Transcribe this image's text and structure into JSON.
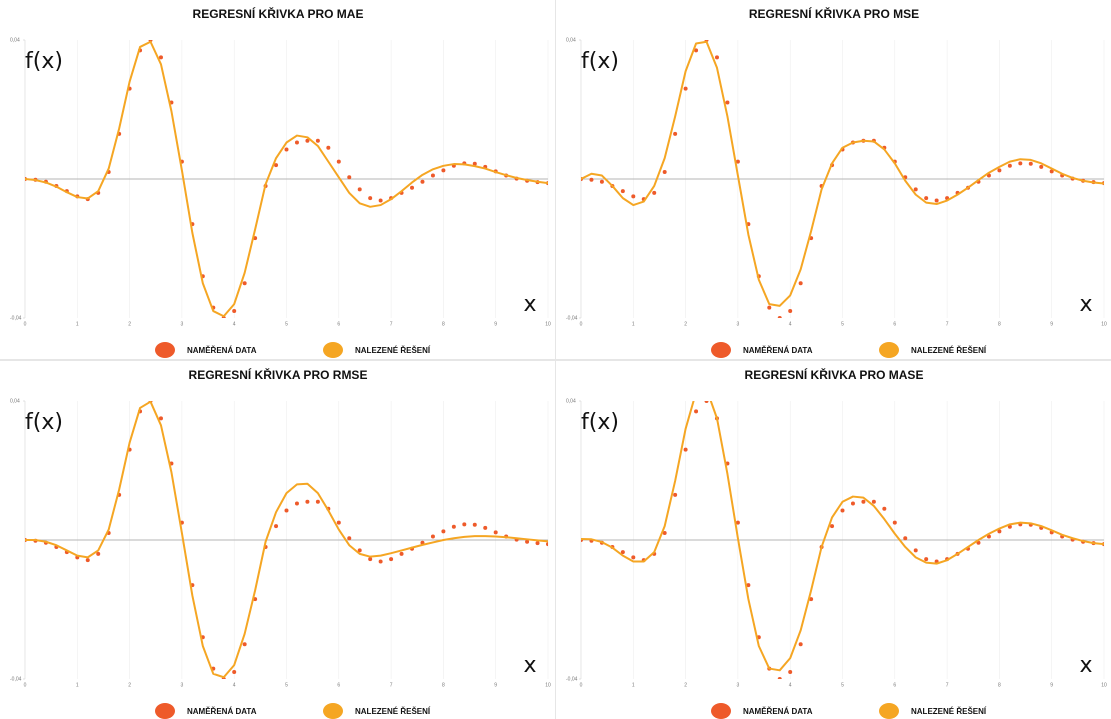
{
  "chart_data": [
    {
      "type": "line",
      "title": "REGRESNÍ KŘIVKA PRO MAE",
      "xlabel": "x",
      "ylabel": "f(x)",
      "xlim": [
        0,
        10
      ],
      "xticks": [
        0,
        1,
        2,
        3,
        4,
        5,
        6,
        7,
        8,
        9,
        10
      ],
      "ylim": [
        -0.04,
        0.04
      ],
      "yticks": [
        {
          "value": -0.04,
          "label": "-0,04"
        },
        {
          "value": 0.04,
          "label": "0,04"
        }
      ],
      "grid": true,
      "x": [
        0,
        0.2,
        0.4,
        0.6,
        0.8,
        1,
        1.2,
        1.4,
        1.6,
        1.8,
        2,
        2.2,
        2.4,
        2.6,
        2.8,
        3,
        3.2,
        3.4,
        3.6,
        3.8,
        4,
        4.2,
        4.4,
        4.6,
        4.8,
        5,
        5.2,
        5.4,
        5.6,
        5.8,
        6,
        6.2,
        6.4,
        6.6,
        6.8,
        7,
        7.2,
        7.4,
        7.6,
        7.8,
        8,
        8.2,
        8.4,
        8.6,
        8.8,
        9,
        9.2,
        9.4,
        9.6,
        9.8,
        10
      ],
      "series": [
        {
          "name": "NAMĚŘENÁ DATA",
          "color": "#ee5a2a",
          "mode": "markers",
          "values": [
            0,
            -0.0002,
            -0.0008,
            -0.002,
            -0.0035,
            -0.005,
            -0.0058,
            -0.004,
            0.002,
            0.013,
            0.026,
            0.037,
            0.04,
            0.035,
            0.022,
            0.005,
            -0.013,
            -0.028,
            -0.037,
            -0.04,
            -0.038,
            -0.03,
            -0.017,
            -0.002,
            0.004,
            0.0085,
            0.0105,
            0.011,
            0.011,
            0.009,
            0.005,
            0.0005,
            -0.003,
            -0.0055,
            -0.0062,
            -0.0055,
            -0.004,
            -0.0025,
            -0.0008,
            0.001,
            0.0025,
            0.0038,
            0.0045,
            0.0044,
            0.0035,
            0.0022,
            0.001,
            0.0001,
            -0.0005,
            -0.0009,
            -0.0012
          ]
        },
        {
          "name": "NALEZENÉ ŘEŠENÍ",
          "color": "#f5a623",
          "mode": "line",
          "values": [
            0,
            -0.0003,
            -0.001,
            -0.0022,
            -0.0038,
            -0.0052,
            -0.0056,
            -0.0035,
            0.003,
            0.0145,
            0.028,
            0.038,
            0.0395,
            0.033,
            0.0195,
            0.0025,
            -0.0155,
            -0.03,
            -0.038,
            -0.0395,
            -0.036,
            -0.027,
            -0.0145,
            -0.0015,
            0.006,
            0.0105,
            0.0125,
            0.012,
            0.0095,
            0.005,
            0.0005,
            -0.004,
            -0.007,
            -0.008,
            -0.0075,
            -0.0058,
            -0.0035,
            -0.001,
            0.0012,
            0.0028,
            0.0038,
            0.0043,
            0.0042,
            0.0037,
            0.003,
            0.002,
            0.0011,
            0.0003,
            -0.0003,
            -0.0008,
            -0.0012
          ]
        }
      ]
    },
    {
      "type": "line",
      "title": "REGRESNÍ KŘIVKA PRO MSE",
      "xlabel": "x",
      "ylabel": "f(x)",
      "xlim": [
        0,
        10
      ],
      "xticks": [
        0,
        1,
        2,
        3,
        4,
        5,
        6,
        7,
        8,
        9,
        10
      ],
      "ylim": [
        -0.04,
        0.04
      ],
      "yticks": [
        {
          "value": -0.04,
          "label": "-0,04"
        },
        {
          "value": 0.04,
          "label": "0,04"
        }
      ],
      "grid": true,
      "x": [
        0,
        0.2,
        0.4,
        0.6,
        0.8,
        1,
        1.2,
        1.4,
        1.6,
        1.8,
        2,
        2.2,
        2.4,
        2.6,
        2.8,
        3,
        3.2,
        3.4,
        3.6,
        3.8,
        4,
        4.2,
        4.4,
        4.6,
        4.8,
        5,
        5.2,
        5.4,
        5.6,
        5.8,
        6,
        6.2,
        6.4,
        6.6,
        6.8,
        7,
        7.2,
        7.4,
        7.6,
        7.8,
        8,
        8.2,
        8.4,
        8.6,
        8.8,
        9,
        9.2,
        9.4,
        9.6,
        9.8,
        10
      ],
      "series": [
        {
          "name": "NAMĚŘENÁ DATA",
          "color": "#ee5a2a",
          "mode": "markers",
          "values": [
            0,
            -0.0002,
            -0.0008,
            -0.002,
            -0.0035,
            -0.005,
            -0.0058,
            -0.004,
            0.002,
            0.013,
            0.026,
            0.037,
            0.04,
            0.035,
            0.022,
            0.005,
            -0.013,
            -0.028,
            -0.037,
            -0.04,
            -0.038,
            -0.03,
            -0.017,
            -0.002,
            0.004,
            0.0085,
            0.0105,
            0.011,
            0.011,
            0.009,
            0.005,
            0.0005,
            -0.003,
            -0.0055,
            -0.0062,
            -0.0055,
            -0.004,
            -0.0025,
            -0.0008,
            0.001,
            0.0025,
            0.0038,
            0.0045,
            0.0044,
            0.0035,
            0.0022,
            0.001,
            0.0001,
            -0.0005,
            -0.0009,
            -0.0012
          ]
        },
        {
          "name": "NALEZENÉ ŘEŠENÍ",
          "color": "#f5a623",
          "mode": "line",
          "values": [
            0,
            0.0015,
            0.001,
            -0.002,
            -0.0055,
            -0.0075,
            -0.0065,
            -0.002,
            0.006,
            0.018,
            0.031,
            0.039,
            0.0395,
            0.032,
            0.018,
            0.001,
            -0.016,
            -0.029,
            -0.036,
            -0.0365,
            -0.0335,
            -0.026,
            -0.015,
            -0.003,
            0.0045,
            0.009,
            0.0105,
            0.011,
            0.0108,
            0.0085,
            0.0045,
            -0.0005,
            -0.0045,
            -0.0068,
            -0.0072,
            -0.0062,
            -0.0045,
            -0.0025,
            -0.0003,
            0.0018,
            0.0035,
            0.005,
            0.0057,
            0.0055,
            0.0045,
            0.003,
            0.0015,
            0.0003,
            -0.0005,
            -0.001,
            -0.0013
          ]
        }
      ]
    },
    {
      "type": "line",
      "title": "REGRESNÍ KŘIVKA PRO RMSE",
      "xlabel": "x",
      "ylabel": "f(x)",
      "xlim": [
        0,
        10
      ],
      "xticks": [
        0,
        1,
        2,
        3,
        4,
        5,
        6,
        7,
        8,
        9,
        10
      ],
      "ylim": [
        -0.04,
        0.04
      ],
      "yticks": [
        {
          "value": -0.04,
          "label": "-0,04"
        },
        {
          "value": 0.04,
          "label": "0,04"
        }
      ],
      "grid": true,
      "x": [
        0,
        0.2,
        0.4,
        0.6,
        0.8,
        1,
        1.2,
        1.4,
        1.6,
        1.8,
        2,
        2.2,
        2.4,
        2.6,
        2.8,
        3,
        3.2,
        3.4,
        3.6,
        3.8,
        4,
        4.2,
        4.4,
        4.6,
        4.8,
        5,
        5.2,
        5.4,
        5.6,
        5.8,
        6,
        6.2,
        6.4,
        6.6,
        6.8,
        7,
        7.2,
        7.4,
        7.6,
        7.8,
        8,
        8.2,
        8.4,
        8.6,
        8.8,
        9,
        9.2,
        9.4,
        9.6,
        9.8,
        10
      ],
      "series": [
        {
          "name": "NAMĚŘENÁ DATA",
          "color": "#ee5a2a",
          "mode": "markers",
          "values": [
            0,
            -0.0002,
            -0.0008,
            -0.002,
            -0.0035,
            -0.005,
            -0.0058,
            -0.004,
            0.002,
            0.013,
            0.026,
            0.037,
            0.04,
            0.035,
            0.022,
            0.005,
            -0.013,
            -0.028,
            -0.037,
            -0.04,
            -0.038,
            -0.03,
            -0.017,
            -0.002,
            0.004,
            0.0085,
            0.0105,
            0.011,
            0.011,
            0.009,
            0.005,
            0.0005,
            -0.003,
            -0.0055,
            -0.0062,
            -0.0055,
            -0.004,
            -0.0025,
            -0.0008,
            0.001,
            0.0025,
            0.0038,
            0.0045,
            0.0044,
            0.0035,
            0.0022,
            0.001,
            0.0001,
            -0.0005,
            -0.0009,
            -0.0012
          ]
        },
        {
          "name": "NALEZENÉ ŘEŠENÍ",
          "color": "#f5a623",
          "mode": "line",
          "values": [
            0,
            0,
            -0.0005,
            -0.0015,
            -0.003,
            -0.0045,
            -0.005,
            -0.003,
            0.003,
            0.0145,
            0.028,
            0.038,
            0.0398,
            0.033,
            0.0195,
            0.002,
            -0.016,
            -0.0305,
            -0.0385,
            -0.0395,
            -0.036,
            -0.027,
            -0.0145,
            -0.0005,
            0.008,
            0.0135,
            0.016,
            0.0162,
            0.0135,
            0.0085,
            0.003,
            -0.0015,
            -0.004,
            -0.0048,
            -0.0045,
            -0.0038,
            -0.003,
            -0.0022,
            -0.0014,
            -0.0007,
            0,
            0.0005,
            0.0009,
            0.0011,
            0.0011,
            0.001,
            0.0008,
            0.0005,
            0.0002,
            -0.0001,
            -0.0004
          ]
        }
      ]
    },
    {
      "type": "line",
      "title": "REGRESNÍ KŘIVKA PRO MASE",
      "xlabel": "x",
      "ylabel": "f(x)",
      "xlim": [
        0,
        10
      ],
      "xticks": [
        0,
        1,
        2,
        3,
        4,
        5,
        6,
        7,
        8,
        9,
        10
      ],
      "ylim": [
        -0.04,
        0.04
      ],
      "yticks": [
        {
          "value": -0.04,
          "label": "-0,04"
        },
        {
          "value": 0.04,
          "label": "0,04"
        }
      ],
      "grid": true,
      "x": [
        0,
        0.2,
        0.4,
        0.6,
        0.8,
        1,
        1.2,
        1.4,
        1.6,
        1.8,
        2,
        2.2,
        2.4,
        2.6,
        2.8,
        3,
        3.2,
        3.4,
        3.6,
        3.8,
        4,
        4.2,
        4.4,
        4.6,
        4.8,
        5,
        5.2,
        5.4,
        5.6,
        5.8,
        6,
        6.2,
        6.4,
        6.6,
        6.8,
        7,
        7.2,
        7.4,
        7.6,
        7.8,
        8,
        8.2,
        8.4,
        8.6,
        8.8,
        9,
        9.2,
        9.4,
        9.6,
        9.8,
        10
      ],
      "series": [
        {
          "name": "NAMĚŘENÁ DATA",
          "color": "#ee5a2a",
          "mode": "markers",
          "values": [
            0,
            -0.0002,
            -0.0008,
            -0.002,
            -0.0035,
            -0.005,
            -0.0058,
            -0.004,
            0.002,
            0.013,
            0.026,
            0.037,
            0.04,
            0.035,
            0.022,
            0.005,
            -0.013,
            -0.028,
            -0.037,
            -0.04,
            -0.038,
            -0.03,
            -0.017,
            -0.002,
            0.004,
            0.0085,
            0.0105,
            0.011,
            0.011,
            0.009,
            0.005,
            0.0005,
            -0.003,
            -0.0055,
            -0.0062,
            -0.0055,
            -0.004,
            -0.0025,
            -0.0008,
            0.001,
            0.0025,
            0.0038,
            0.0045,
            0.0044,
            0.0035,
            0.0022,
            0.001,
            0.0001,
            -0.0005,
            -0.0009,
            -0.0012
          ]
        },
        {
          "name": "NALEZENÉ ŘEŠENÍ",
          "color": "#f5a623",
          "mode": "line",
          "values": [
            0.0003,
            0.0002,
            -0.0006,
            -0.0022,
            -0.0045,
            -0.0062,
            -0.0062,
            -0.0035,
            0.004,
            0.017,
            0.032,
            0.0425,
            0.0435,
            0.035,
            0.019,
            0.0005,
            -0.017,
            -0.0305,
            -0.037,
            -0.0375,
            -0.034,
            -0.026,
            -0.0145,
            -0.002,
            0.0065,
            0.011,
            0.0125,
            0.0122,
            0.0098,
            0.006,
            0.0018,
            -0.002,
            -0.005,
            -0.0065,
            -0.0068,
            -0.0058,
            -0.004,
            -0.002,
            0,
            0.0018,
            0.0033,
            0.0045,
            0.005,
            0.0048,
            0.004,
            0.0028,
            0.0015,
            0.0005,
            -0.0003,
            -0.0009,
            -0.0012
          ]
        }
      ]
    }
  ]
}
